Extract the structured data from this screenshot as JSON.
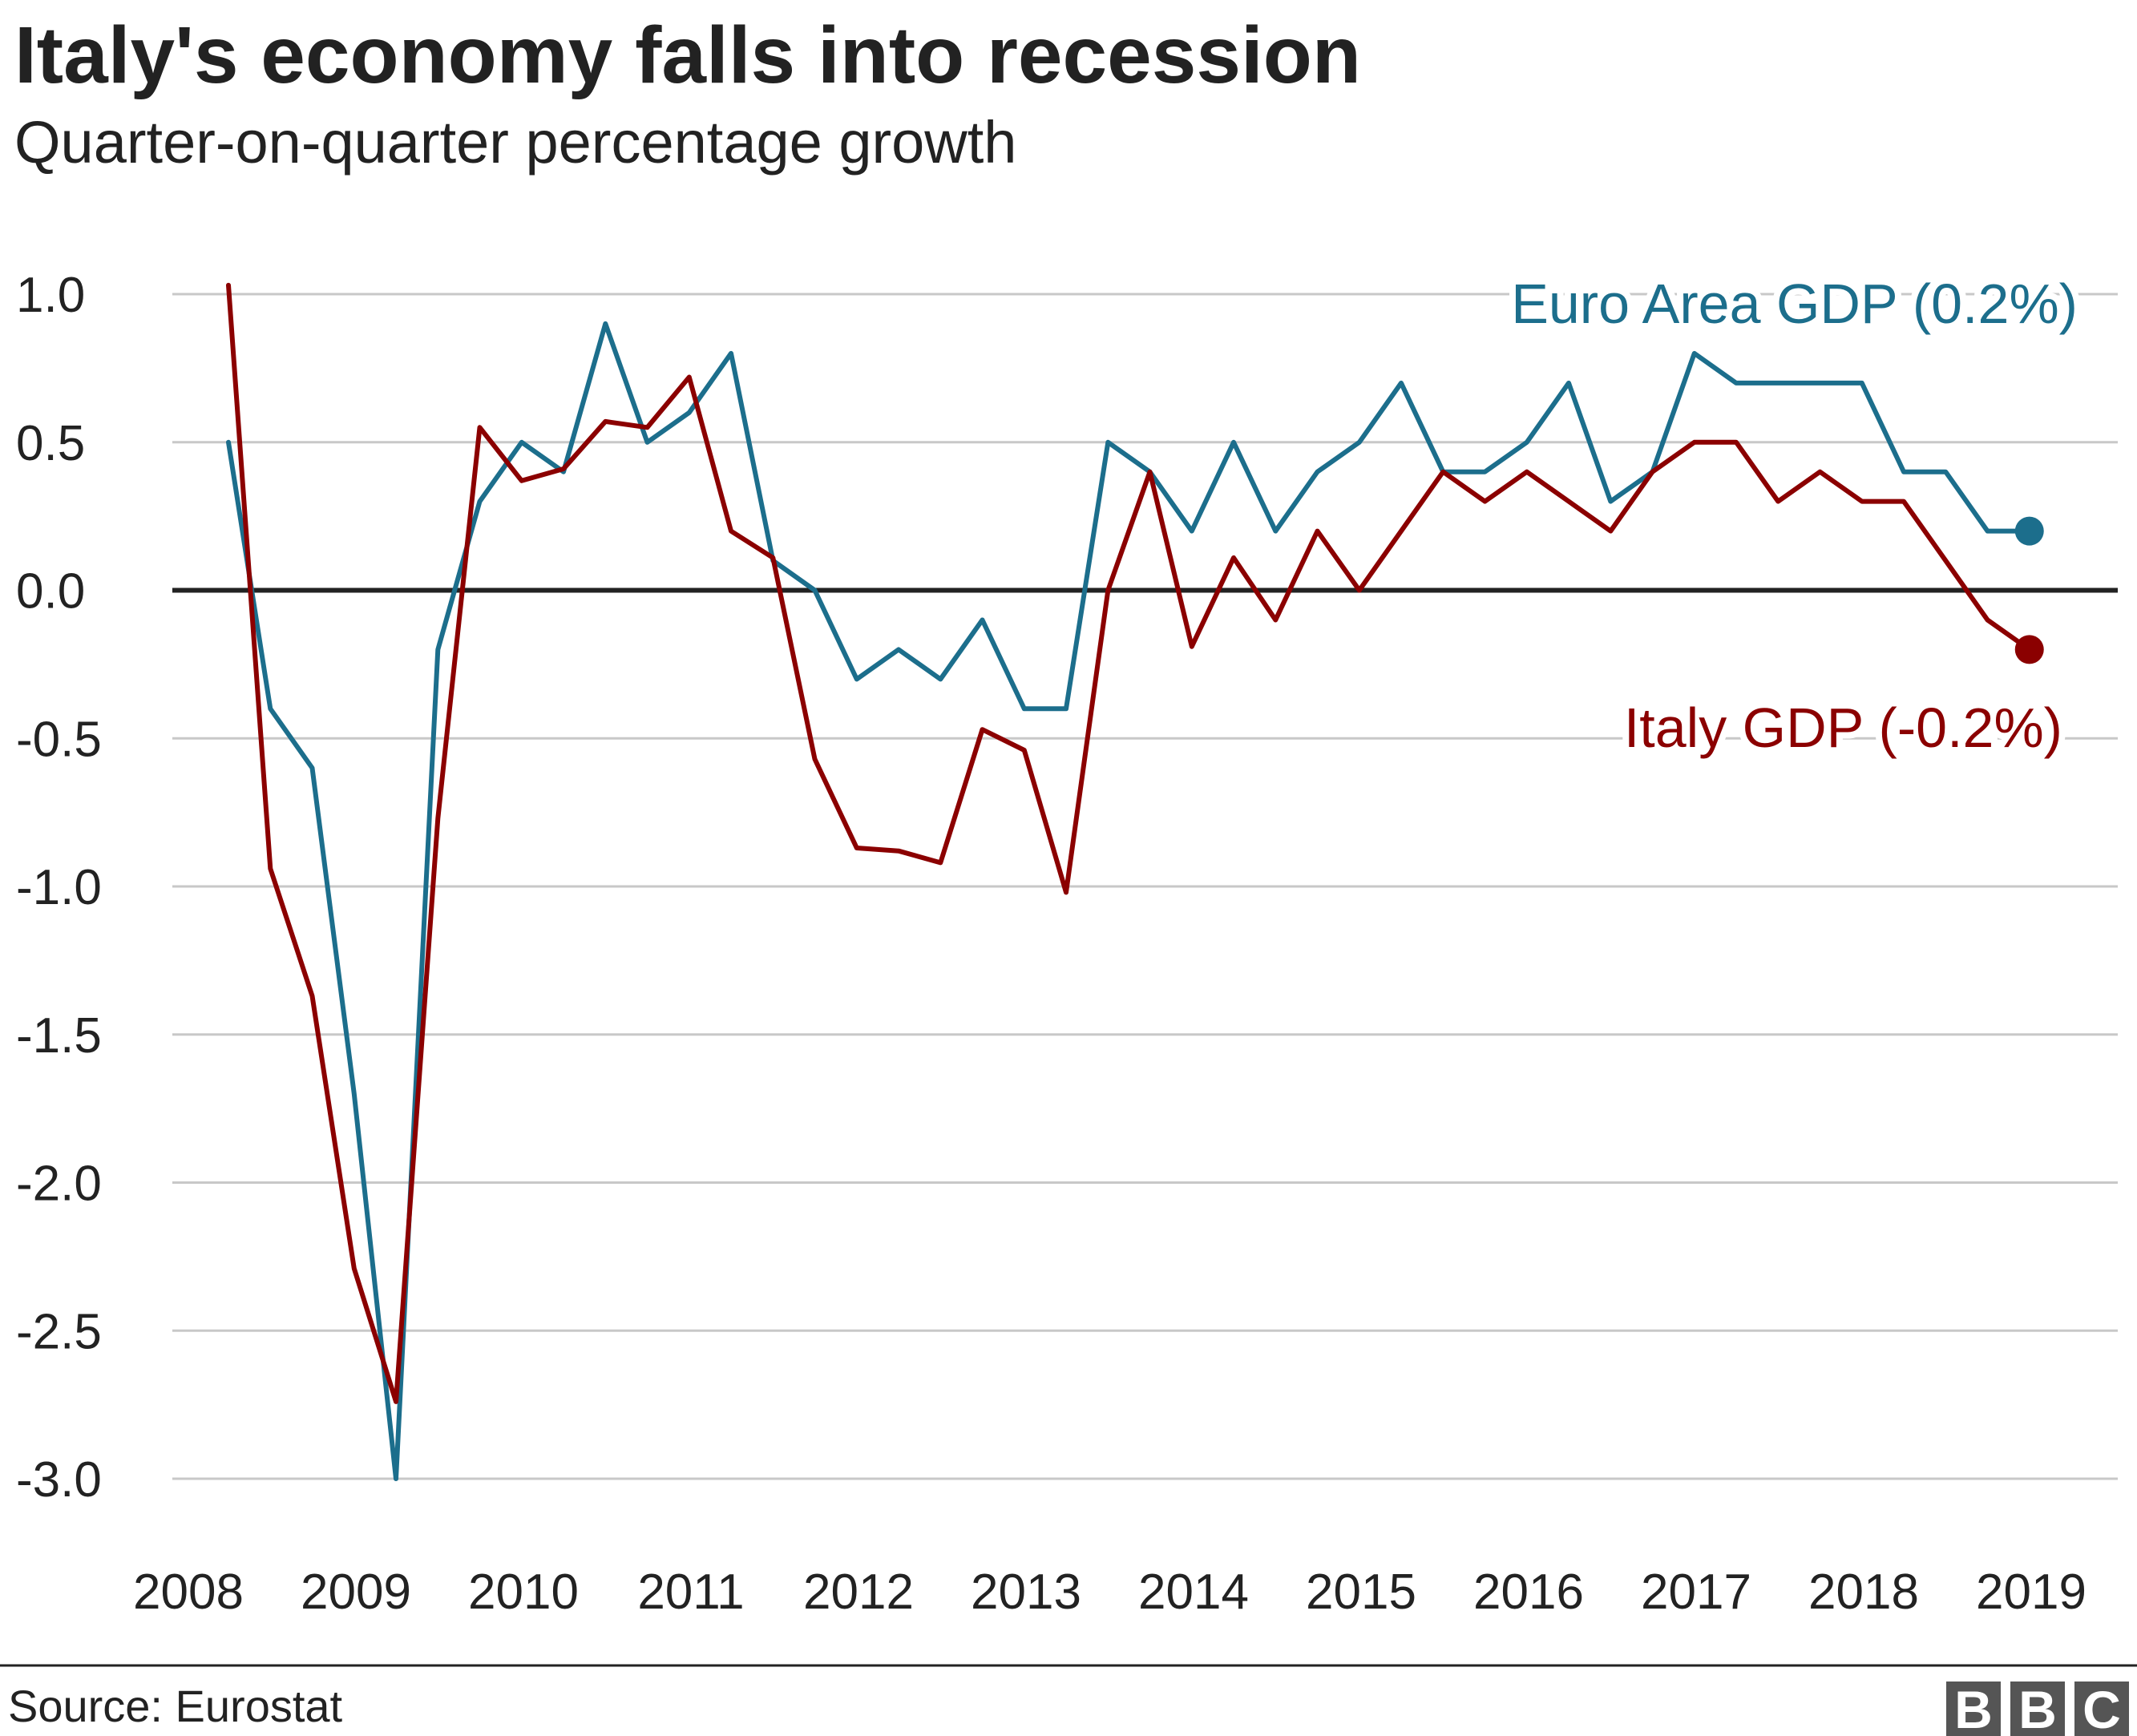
{
  "chart_data": {
    "type": "line",
    "title": "Italy's economy falls into recession",
    "subtitle": "Quarter-on-quarter percentage growth",
    "ylim": [
      -3.0,
      1.0
    ],
    "y_ticks": [
      "1.0",
      "0.5",
      "0.0",
      "-0.5",
      "-1.0",
      "-1.5",
      "-2.0",
      "-2.5",
      "-3.0"
    ],
    "x_ticks": [
      "2008",
      "2009",
      "2010",
      "2011",
      "2012",
      "2013",
      "2014",
      "2015",
      "2016",
      "2017",
      "2018",
      "2019"
    ],
    "grid": true,
    "series": [
      {
        "name": "Euro Area GDP (0.2%)",
        "color": "#1c6e8c",
        "values": [
          0.5,
          -0.4,
          -0.6,
          -1.7,
          -3.0,
          -0.2,
          0.3,
          0.5,
          0.4,
          0.9,
          0.5,
          0.6,
          0.8,
          0.1,
          0.0,
          -0.3,
          -0.2,
          -0.3,
          -0.1,
          -0.4,
          -0.4,
          0.5,
          0.4,
          0.2,
          0.5,
          0.2,
          0.4,
          0.5,
          0.7,
          0.4,
          0.4,
          0.5,
          0.7,
          0.3,
          0.4,
          0.8,
          0.7,
          0.7,
          0.7,
          0.7,
          0.4,
          0.4,
          0.2,
          0.2
        ]
      },
      {
        "name": "Italy GDP (-0.2%)",
        "color": "#8b0000",
        "values": [
          1.03,
          -0.94,
          -1.37,
          -2.29,
          -2.74,
          -0.77,
          0.55,
          0.37,
          0.41,
          0.57,
          0.55,
          0.72,
          0.2,
          0.11,
          -0.57,
          -0.87,
          -0.88,
          -0.92,
          -0.47,
          -0.54,
          -1.02,
          0.0,
          0.4,
          -0.19,
          0.11,
          -0.1,
          0.2,
          0.0,
          0.2,
          0.4,
          0.3,
          0.4,
          0.3,
          0.2,
          0.4,
          0.5,
          0.5,
          0.3,
          0.4,
          0.3,
          0.3,
          0.1,
          -0.1,
          -0.2
        ]
      }
    ]
  },
  "footer": {
    "source": "Source: Eurostat",
    "logo_letters": [
      "B",
      "B",
      "C"
    ]
  }
}
